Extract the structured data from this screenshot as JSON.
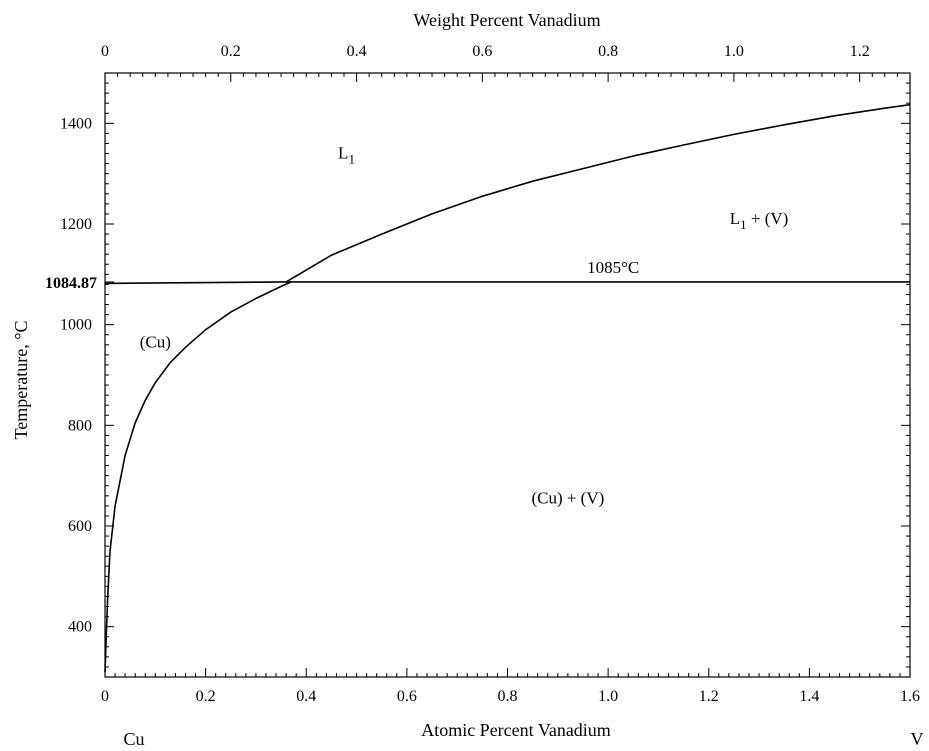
{
  "chart_data": {
    "type": "line",
    "title": "",
    "xlabel": "Atomic Percent Vanadium",
    "x2label": "Weight Percent Vanadium",
    "ylabel": "Temperature, °C",
    "xlim": [
      0,
      1.6
    ],
    "ylim": [
      300,
      1500
    ],
    "x2lim": [
      0,
      1.28
    ],
    "x_ticks": [
      "0",
      "0.2",
      "0.4",
      "0.6",
      "0.8",
      "1.0",
      "1.2",
      "1.4",
      "1.6"
    ],
    "x2_ticks": [
      "0",
      "0.2",
      "0.4",
      "0.6",
      "0.8",
      "1.0",
      "1.2"
    ],
    "y_ticks": [
      "400",
      "600",
      "800",
      "1000",
      "1200",
      "1400"
    ],
    "y_special_tick": {
      "value": 1084.87,
      "label": "1084.87"
    },
    "element_left": "Cu",
    "element_right": "V",
    "grid": false,
    "series": [
      {
        "x": [
          0.36,
          0.45,
          0.55,
          0.65,
          0.75,
          0.85,
          0.95,
          1.05,
          1.15,
          1.25,
          1.35,
          1.45,
          1.55,
          1.6
        ],
        "y": [
          1085,
          1138,
          1180,
          1220,
          1255,
          1285,
          1310,
          1335,
          1357,
          1378,
          1397,
          1415,
          1430,
          1437
        ]
      },
      {
        "x": [
          0,
          0.005,
          0.01,
          0.02,
          0.04,
          0.06,
          0.08,
          0.1,
          0.13,
          0.16,
          0.2,
          0.25,
          0.3,
          0.35,
          0.37
        ],
        "y": [
          310,
          450,
          550,
          640,
          740,
          805,
          850,
          885,
          925,
          955,
          990,
          1025,
          1052,
          1076,
          1085
        ]
      },
      {
        "x": [
          0,
          0.36
        ],
        "y": [
          1082,
          1085
        ]
      },
      {
        "x": [
          0.36,
          1.6
        ],
        "y": [
          1085,
          1085
        ]
      }
    ],
    "annotations": [
      {
        "text": "L",
        "sub": "1",
        "x": 0.48,
        "y": 1330
      },
      {
        "text": "L",
        "sub": "1",
        "rest": " + (V)",
        "x": 1.3,
        "y": 1200
      },
      {
        "text": "1085°C",
        "x": 1.01,
        "y": 1103
      },
      {
        "text": "(Cu)",
        "x": 0.1,
        "y": 955
      },
      {
        "text": "(Cu) + (V)",
        "x": 0.92,
        "y": 645
      }
    ]
  }
}
